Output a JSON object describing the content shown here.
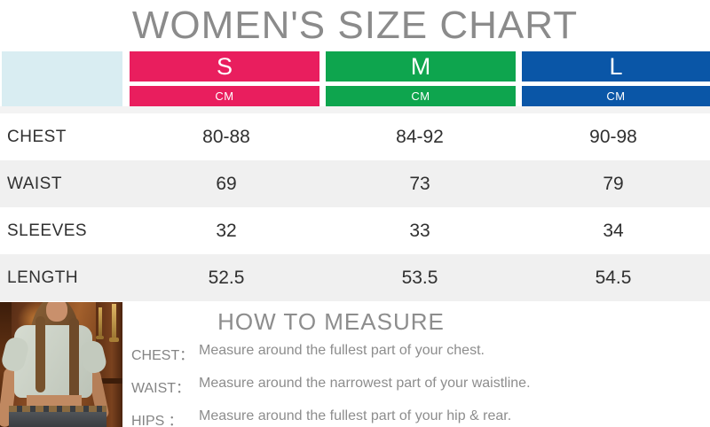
{
  "title": "WOMEN'S SIZE CHART",
  "colors": {
    "size_s": "#e91e5e",
    "size_m": "#0ea54e",
    "size_l": "#0a56a7",
    "corner_cell": "#d9edf2",
    "row_alt": "#f0f0f0",
    "heading_gray": "#8b8b8b"
  },
  "size_table": {
    "columns": [
      {
        "label": "S",
        "unit": "CM"
      },
      {
        "label": "M",
        "unit": "CM"
      },
      {
        "label": "L",
        "unit": "CM"
      }
    ],
    "rows": [
      {
        "label": "CHEST",
        "values": [
          "80-88",
          "84-92",
          "90-98"
        ]
      },
      {
        "label": "WAIST",
        "values": [
          "69",
          "73",
          "79"
        ]
      },
      {
        "label": "SLEEVES",
        "values": [
          "32",
          "33",
          "34"
        ]
      },
      {
        "label": "LENGTH",
        "values": [
          "52.5",
          "53.5",
          "54.5"
        ]
      }
    ]
  },
  "how_to_measure": {
    "heading": "HOW TO MEASURE",
    "items": [
      {
        "label": "CHEST：",
        "text": "Measure around the fullest part of your chest."
      },
      {
        "label": "WAIST：",
        "text": "Measure around the narrowest part of your waistline."
      },
      {
        "label": "HIPS ：",
        "text": "Measure around the fullest part of your hip & rear."
      }
    ]
  }
}
